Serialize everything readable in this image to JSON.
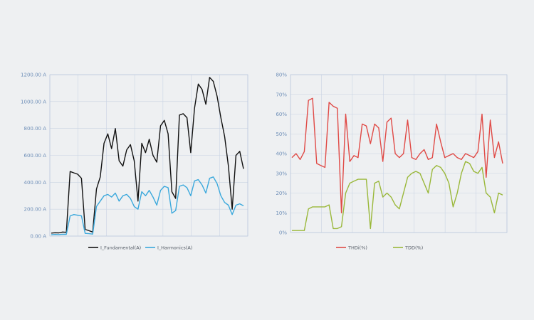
{
  "chart_data": [
    {
      "type": "line",
      "title": "",
      "xlabel": "",
      "ylabel": "",
      "ylim": [
        0,
        1200
      ],
      "yticks": [
        "0.00 A",
        "200.00 A",
        "400.00 A",
        "600.00 A",
        "800.00 A",
        "1000.00 A",
        "1200.00 A"
      ],
      "x_categories": 7,
      "grid": true,
      "legend_position": "bottom-center",
      "series": [
        {
          "name": "I_Fundamental(A)",
          "color": "#111111",
          "values": [
            22,
            25,
            24,
            30,
            28,
            480,
            470,
            460,
            430,
            50,
            40,
            30,
            350,
            440,
            690,
            760,
            650,
            800,
            560,
            520,
            640,
            680,
            560,
            260,
            690,
            620,
            720,
            600,
            550,
            820,
            860,
            760,
            330,
            280,
            900,
            910,
            880,
            620,
            950,
            1130,
            1090,
            980,
            1180,
            1150,
            1040,
            880,
            740,
            520,
            200,
            600,
            630,
            500
          ]
        },
        {
          "name": "I_Harmonics(A)",
          "color": "#3aa8dc",
          "values": [
            10,
            12,
            11,
            14,
            13,
            150,
            160,
            155,
            150,
            20,
            18,
            15,
            220,
            260,
            300,
            310,
            290,
            320,
            260,
            300,
            310,
            280,
            220,
            200,
            330,
            300,
            340,
            290,
            230,
            340,
            370,
            360,
            170,
            190,
            370,
            380,
            360,
            300,
            410,
            420,
            380,
            320,
            430,
            440,
            390,
            300,
            250,
            230,
            160,
            230,
            240,
            225
          ]
        }
      ]
    },
    {
      "type": "line",
      "title": "",
      "xlabel": "",
      "ylabel": "",
      "ylim": [
        0,
        80
      ],
      "yticks": [
        "0%",
        "10%",
        "20%",
        "30%",
        "40%",
        "50%",
        "60%",
        "70%",
        "80%"
      ],
      "x_categories": 7,
      "grid": true,
      "legend_position": "bottom-center",
      "series": [
        {
          "name": "THDi(%)",
          "color": "#e04a46",
          "values": [
            38,
            40,
            37,
            41,
            67,
            68,
            35,
            34,
            33,
            66,
            64,
            63,
            10,
            60,
            36,
            39,
            38,
            55,
            54,
            45,
            55,
            53,
            36,
            56,
            58,
            40,
            38,
            40,
            57,
            38,
            37,
            40,
            42,
            37,
            38,
            55,
            46,
            38,
            39,
            40,
            38,
            37,
            40,
            39,
            38,
            41,
            60,
            28,
            57,
            38,
            46,
            35
          ]
        },
        {
          "name": "TDD(%)",
          "color": "#9ab83a",
          "values": [
            1,
            1,
            1,
            1,
            12,
            13,
            13,
            13,
            13,
            14,
            2,
            2,
            3,
            20,
            25,
            26,
            27,
            27,
            27,
            2,
            25,
            26,
            18,
            20,
            18,
            14,
            12,
            20,
            28,
            30,
            31,
            30,
            25,
            20,
            32,
            34,
            33,
            30,
            25,
            13,
            20,
            30,
            36,
            35,
            31,
            30,
            33,
            20,
            18,
            10,
            20,
            19
          ]
        }
      ]
    }
  ]
}
